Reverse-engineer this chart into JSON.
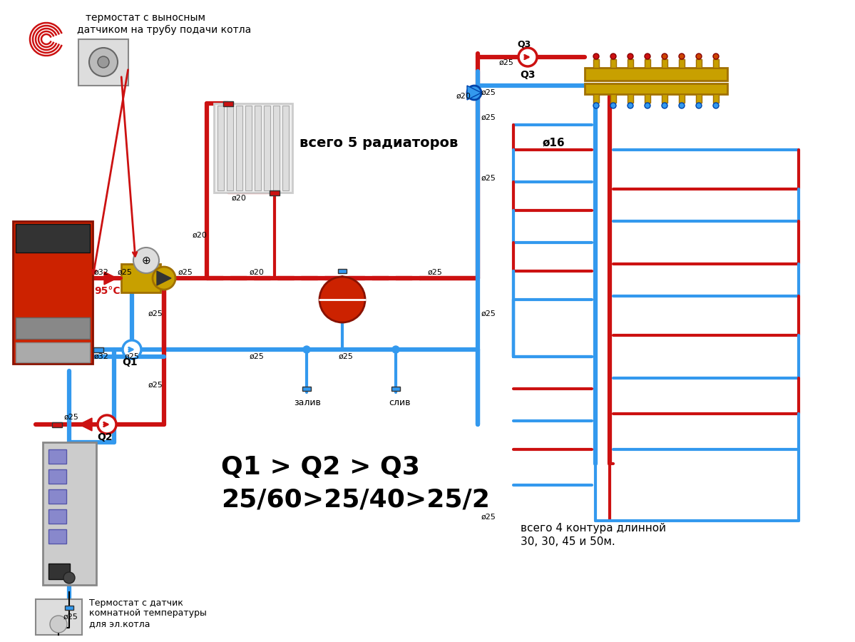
{
  "red": "#cc1111",
  "blue": "#3399ee",
  "black": "#111111",
  "white": "#ffffff",
  "gray_boiler": "#bbbbbb",
  "red_boiler": "#cc2200",
  "brass": "#c8a000",
  "gray_panel": "#cccccc",
  "dark": "#222222",
  "title_line1": "термостат с выносным",
  "title_line2": "датчиком на трубу подачи котла",
  "label_radiators": "всего 5 радиаторов",
  "label_circuits": "всего 4 контура длинной",
  "label_circuits2": "30, 30, 45 и 50м.",
  "label_q1q2q3": "Q1 > Q2 > Q3",
  "label_pumpsizes": "25/60>25/40>25/2",
  "label_temp": "95°С",
  "label_thermostat_bottom": "Термостат с датчик",
  "label_thermostat_bottom2": "комнатной температуры",
  "label_thermostat_bottom3": "для эл.котла",
  "label_zaliv": "залив",
  "label_sliv": "слив",
  "label_phi16": "ø16",
  "label_Q1": "Q1",
  "label_Q2": "Q2",
  "label_Q3": "Q3"
}
